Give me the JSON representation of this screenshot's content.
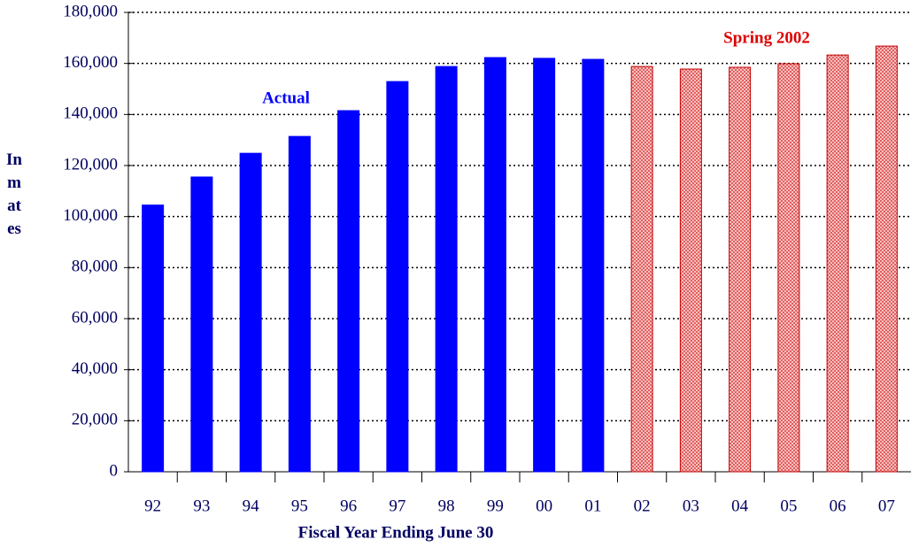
{
  "chart_data": {
    "type": "bar",
    "x_label": "Fiscal Year Ending June 30",
    "y_label": "Inmates",
    "categories": [
      "92",
      "93",
      "94",
      "95",
      "96",
      "97",
      "98",
      "99",
      "00",
      "01",
      "02",
      "03",
      "04",
      "05",
      "06",
      "07"
    ],
    "series": [
      {
        "name": "Actual",
        "color": "#0000ff",
        "values": [
          104500,
          115500,
          124800,
          131400,
          141500,
          152900,
          158800,
          162300,
          162000,
          161600,
          null,
          null,
          null,
          null,
          null,
          null
        ]
      },
      {
        "name": "Spring 2002",
        "color": "#f4a0a0",
        "values": [
          null,
          null,
          null,
          null,
          null,
          null,
          null,
          null,
          null,
          null,
          158800,
          157800,
          158500,
          159900,
          163300,
          166800
        ]
      }
    ],
    "ylim": [
      0,
      180000
    ],
    "yticks": [
      0,
      {
        "value": 20000,
        "label": "20,000"
      },
      {
        "value": 40000,
        "label": "40,000"
      },
      {
        "value": 60000,
        "label": "60,000"
      },
      {
        "value": 80000,
        "label": "80,000"
      },
      {
        "value": 100000,
        "label": "100,000"
      },
      {
        "value": 120000,
        "label": "120,000"
      },
      {
        "value": 140000,
        "label": "140,000"
      },
      {
        "value": 160000,
        "label": "160,000"
      },
      {
        "value": 180000,
        "label": "180,000"
      }
    ],
    "grid": true
  }
}
